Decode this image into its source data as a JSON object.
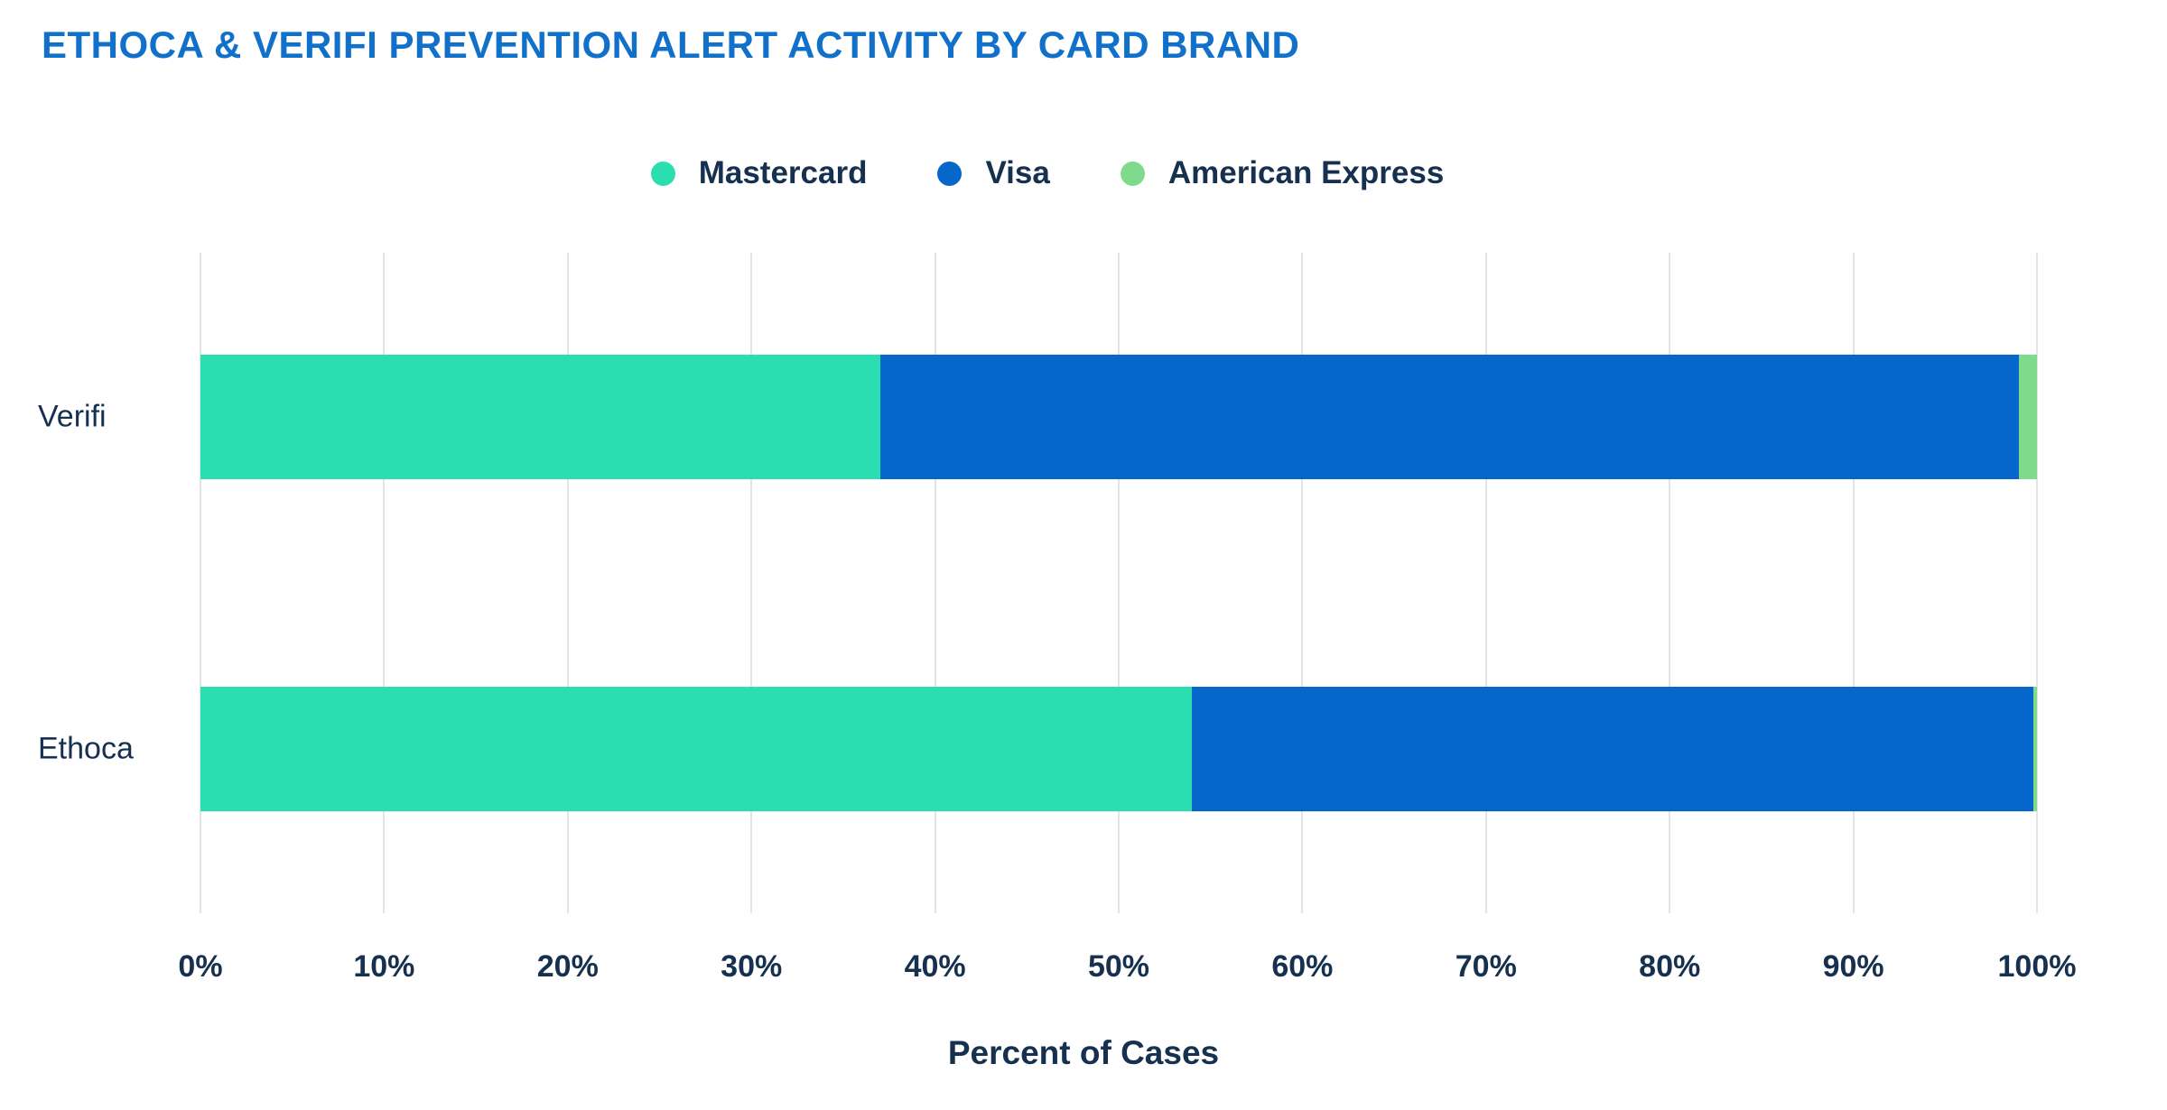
{
  "title": "ETHOCA & VERIFI PREVENTION ALERT ACTIVITY BY CARD BRAND",
  "colors": {
    "title": "#1171CA",
    "text": "#16304F",
    "grid": "#E4E4E4",
    "mastercard": "#2ADEB2",
    "visa": "#0667CA",
    "american_express": "#7FDA8C"
  },
  "legend": {
    "items": [
      {
        "label": "Mastercard",
        "color": "#2ADEB2"
      },
      {
        "label": "Visa",
        "color": "#0667CA"
      },
      {
        "label": "American Express",
        "color": "#7FDA8C"
      }
    ]
  },
  "chart_data": {
    "type": "bar",
    "orientation": "horizontal",
    "stacked": true,
    "categories": [
      "Verifi",
      "Ethoca"
    ],
    "series": [
      {
        "name": "Mastercard",
        "color": "#2ADEB2",
        "values": [
          37,
          54
        ]
      },
      {
        "name": "Visa",
        "color": "#0667CA",
        "values": [
          62,
          45.8
        ]
      },
      {
        "name": "American Express",
        "color": "#7FDA8C",
        "values": [
          1,
          0.2
        ]
      }
    ],
    "title": "ETHOCA & VERIFI PREVENTION ALERT ACTIVITY BY CARD BRAND",
    "xlabel": "Percent of Cases",
    "ylabel": "",
    "xlim": [
      0,
      100
    ],
    "xticks": [
      "0%",
      "10%",
      "20%",
      "30%",
      "40%",
      "50%",
      "60%",
      "70%",
      "80%",
      "90%",
      "100%"
    ],
    "grid": true,
    "legend_position": "top"
  }
}
